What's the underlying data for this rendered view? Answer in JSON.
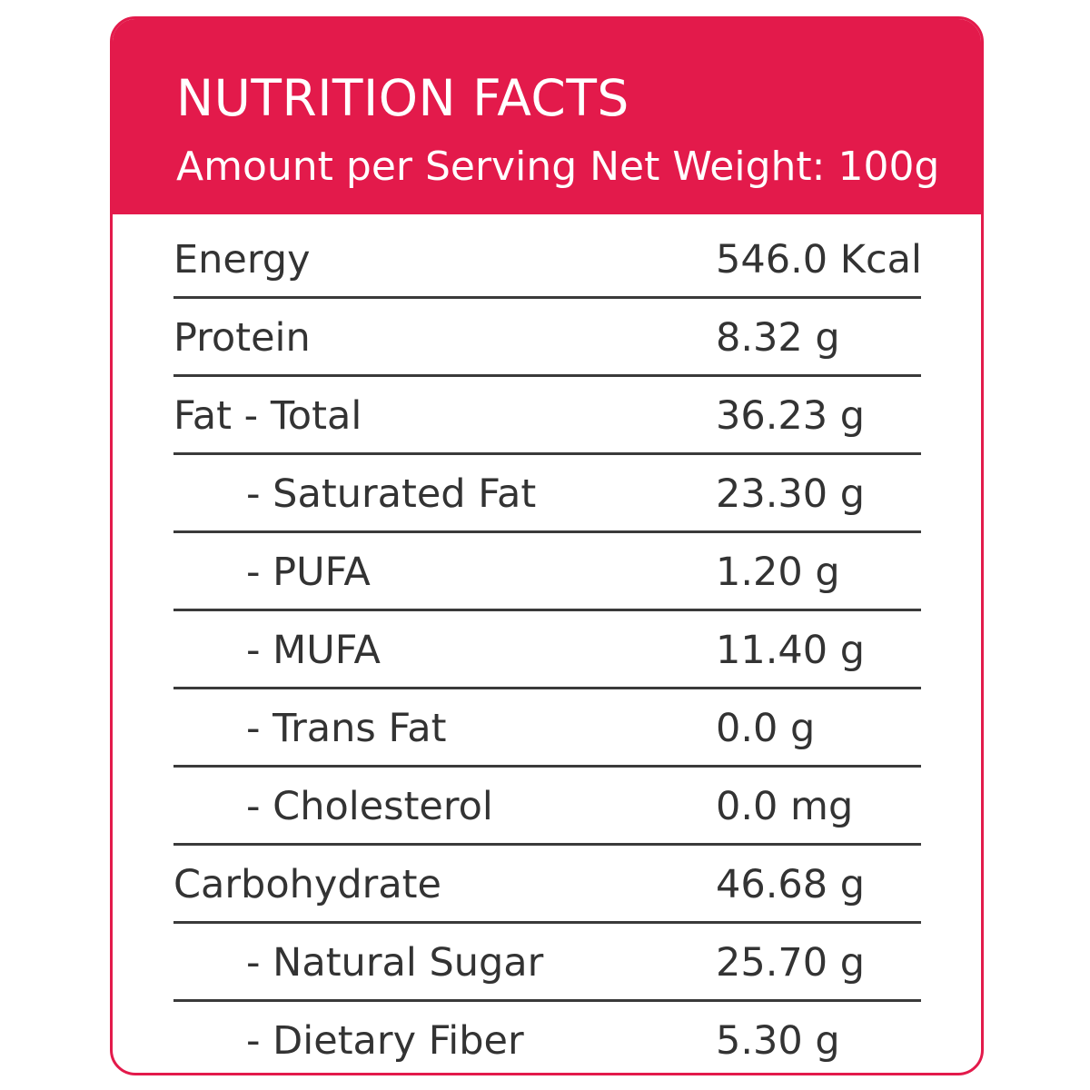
{
  "colors": {
    "accent": "#e31a4b",
    "text": "#333333",
    "rule": "#3a3a3a"
  },
  "header": {
    "title": "NUTRITION FACTS",
    "subtitle": "Amount per Serving Net Weight: 100g"
  },
  "rows": [
    {
      "label": "Energy",
      "value": "546.0 Kcal"
    },
    {
      "label": "Protein",
      "value": "8.32 g"
    },
    {
      "label": "Fat - Total",
      "value": "36.23 g"
    },
    {
      "label": "- Saturated Fat",
      "value": "23.30 g"
    },
    {
      "label": "- PUFA",
      "value": "1.20 g"
    },
    {
      "label": "- MUFA",
      "value": "11.40 g"
    },
    {
      "label": "- Trans Fat",
      "value": "0.0 g"
    },
    {
      "label": "- Cholesterol",
      "value": "0.0 mg"
    },
    {
      "label": "Carbohydrate",
      "value": "46.68 g"
    },
    {
      "label": "- Natural Sugar",
      "value": "25.70 g"
    },
    {
      "label": "- Dietary Fiber",
      "value": "5.30 g"
    }
  ]
}
